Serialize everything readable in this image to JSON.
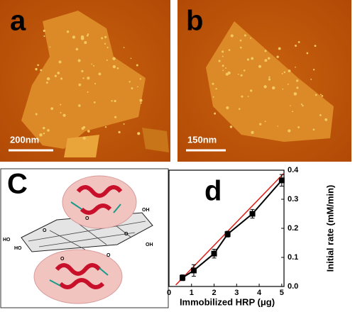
{
  "panels": {
    "a": {
      "label": "a",
      "scale_bar": "200nm"
    },
    "b": {
      "label": "b",
      "scale_bar": "150nm"
    },
    "c": {
      "label": "C",
      "atoms": [
        "HO",
        "HO",
        "O",
        "O",
        "O",
        "OH",
        "OH",
        "O",
        "O"
      ]
    }
  },
  "chart_data": {
    "type": "line",
    "panel_label": "d",
    "x_label": "Immobilized HRP (μg)",
    "y_label": "Initial rate (mM/min)",
    "x": [
      0.6,
      1.1,
      2.0,
      2.6,
      3.7,
      5.0
    ],
    "series": [
      {
        "color": "#000000",
        "values": [
          0.03,
          0.055,
          0.113,
          0.18,
          0.25,
          0.365
        ],
        "errors": [
          0.01,
          0.02,
          0.015,
          0.01,
          0.015,
          0.02
        ]
      }
    ],
    "fit": {
      "color": "#e0201a",
      "x": [
        0.3,
        5.1
      ],
      "values": [
        0.005,
        0.39
      ]
    },
    "xlim": [
      0,
      5.1
    ],
    "ylim": [
      0,
      0.4
    ],
    "xticks": [
      0,
      1,
      2,
      3,
      4,
      5
    ],
    "yticks": [
      {
        "value": 0,
        "label": "0.0"
      },
      0.1,
      0.2,
      0.3,
      0.4
    ]
  }
}
